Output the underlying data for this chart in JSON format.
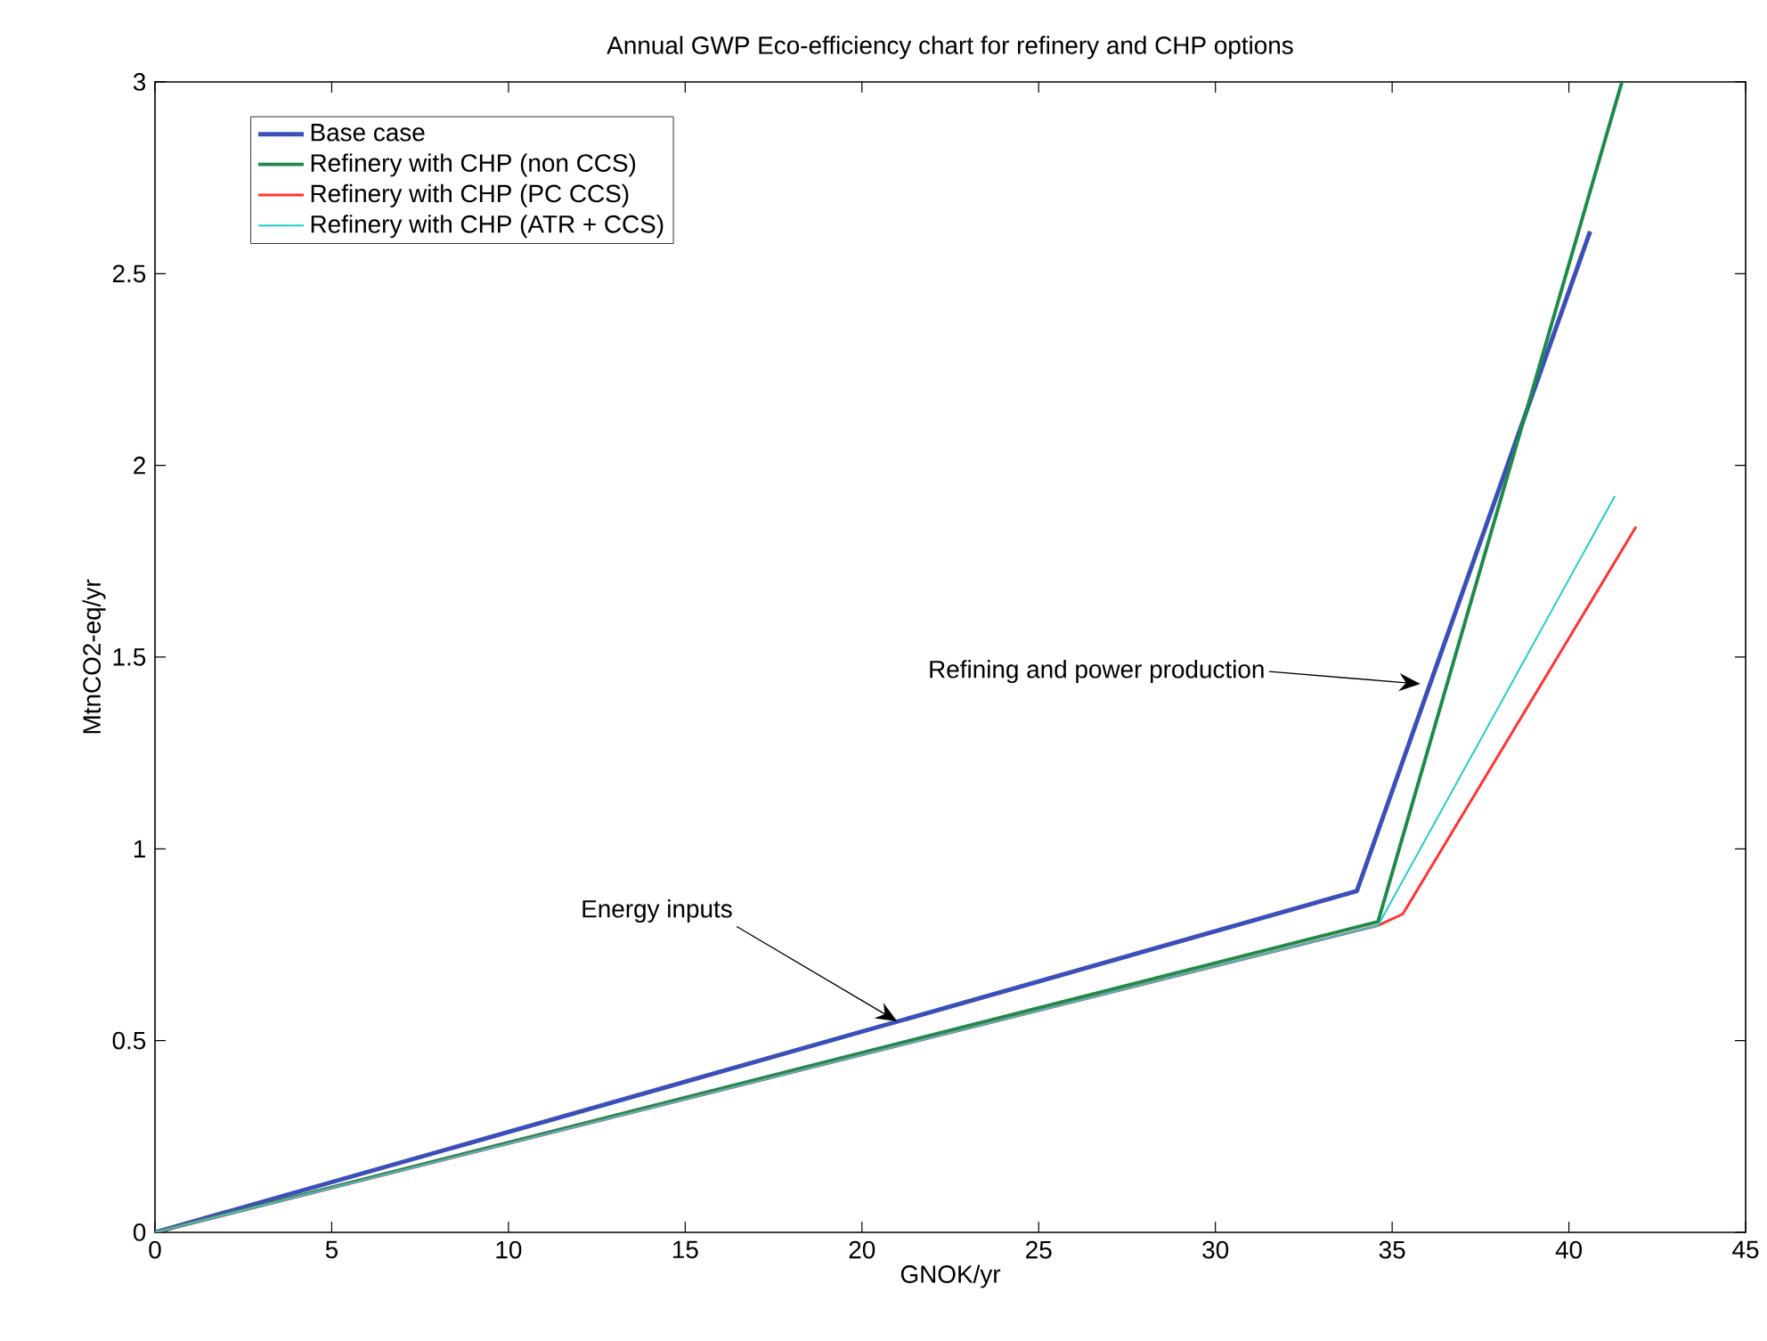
{
  "chart_data": {
    "type": "line",
    "title": "Annual GWP Eco-efficiency chart for refinery and CHP options",
    "xlabel": "GNOK/yr",
    "ylabel": "MtnCO2-eq/yr",
    "xlim": [
      0,
      45
    ],
    "ylim": [
      0,
      3
    ],
    "xticks": [
      0,
      5,
      10,
      15,
      20,
      25,
      30,
      35,
      40,
      45
    ],
    "yticks": [
      0,
      0.5,
      1,
      1.5,
      2,
      2.5,
      3
    ],
    "grid": false,
    "legend": "top left",
    "line_style": "solid",
    "series": [
      {
        "name": "Base case",
        "color": "#3b4fb8",
        "x": [
          0,
          34.0,
          40.6
        ],
        "values": [
          0,
          0.89,
          2.61
        ]
      },
      {
        "name": "Refinery with CHP (non CCS)",
        "color": "#1e8a4a",
        "x": [
          0,
          34.6,
          41.5
        ],
        "values": [
          0,
          0.81,
          3.0
        ]
      },
      {
        "name": "Refinery with CHP (PC CCS)",
        "color": "#ff3333",
        "x": [
          0,
          34.6,
          35.3,
          41.9
        ],
        "values": [
          0,
          0.8,
          0.83,
          1.84
        ]
      },
      {
        "name": "Refinery with CHP (ATR + CCS)",
        "color": "#22cccc",
        "x": [
          0,
          34.6,
          41.3
        ],
        "values": [
          0,
          0.8,
          1.92
        ]
      }
    ],
    "annotations": [
      {
        "text": "Energy inputs",
        "x": 21.0,
        "y": 0.55
      },
      {
        "text": "Refining and power production",
        "x": 35.8,
        "y": 1.43
      }
    ]
  }
}
